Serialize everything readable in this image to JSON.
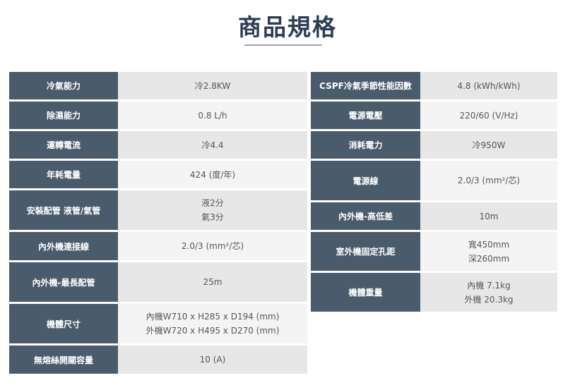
{
  "title": "商品規格",
  "left": [
    {
      "label": "冷氣能力",
      "value": [
        "冷2.8KW"
      ]
    },
    {
      "label": "除濕能力",
      "value": [
        "0.8 L/h"
      ]
    },
    {
      "label": "運轉電流",
      "value": [
        "冷4.4"
      ]
    },
    {
      "label": "年耗電量",
      "value": [
        "424 (度/年)"
      ]
    },
    {
      "label": "安裝配管 液管/氣管",
      "value": [
        "液2分",
        "氣3分"
      ]
    },
    {
      "label": "內外機連接線",
      "value": [
        "2.0/3 (mm²/芯)"
      ]
    },
    {
      "label": "內外機-最長配管",
      "value": [
        "25m"
      ]
    },
    {
      "label": "機體尺寸",
      "value": [
        "內機W710 x H285 x D194 (mm)",
        "外機W720 x H495 x D270 (mm)"
      ]
    },
    {
      "label": "無熔絲開關容量",
      "value": [
        "10 (A)"
      ]
    }
  ],
  "right": [
    {
      "label": "CSPF冷氣季節性能因數",
      "value": [
        "4.8 (kWh/kWh)"
      ]
    },
    {
      "label": "電源電壓",
      "value": [
        "220/60 (V/Hz)"
      ]
    },
    {
      "label": "消耗電力",
      "value": [
        "冷950W"
      ]
    },
    {
      "label": "電源線",
      "value": [
        "2.0/3 (mm²/芯)"
      ]
    },
    {
      "label": "內外機-高低差",
      "value": [
        "10m"
      ]
    },
    {
      "label": "室外機固定孔距",
      "value": [
        "寬450mm",
        "深260mm"
      ]
    },
    {
      "label": "機體重量",
      "value": [
        "內機 7.1kg",
        "外機 20.3kg"
      ]
    }
  ]
}
